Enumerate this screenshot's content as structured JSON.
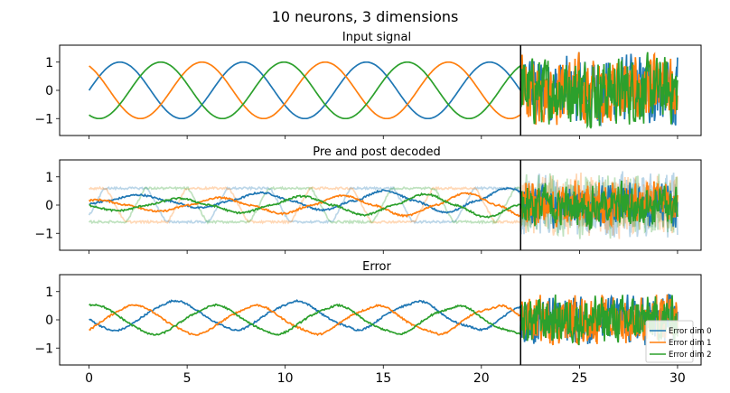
{
  "title": "10 neurons, 3 dimensions",
  "colors": {
    "dim0": "#1f77b4",
    "dim1": "#ff7f0e",
    "dim2": "#2ca02c"
  },
  "chart_data": [
    {
      "type": "line",
      "title": "Input signal",
      "xlim": [
        -1.5,
        31.2
      ],
      "ylim": [
        -1.6,
        1.6
      ],
      "yticks": [
        "1",
        "0",
        "−1"
      ],
      "ytick_values": [
        1,
        0,
        -1
      ],
      "vline_x": 22,
      "series": [
        {
          "color": "#1f77b4",
          "segment1": "sin(t)",
          "segment2": "noise"
        },
        {
          "color": "#ff7f0e",
          "segment1": "sin(t + 2.1)",
          "segment2": "noise"
        },
        {
          "color": "#2ca02c",
          "segment1": "sin(t + 4.2)",
          "segment2": "noise"
        }
      ]
    },
    {
      "type": "line",
      "title": "Pre and post decoded",
      "xlim": [
        -1.5,
        31.2
      ],
      "ylim": [
        -1.6,
        1.6
      ],
      "yticks": [
        "1",
        "0",
        "−1"
      ],
      "ytick_values": [
        1,
        0,
        -1
      ],
      "vline_x": 22,
      "series": [
        {
          "color": "#1f77b4",
          "role": "post decoded"
        },
        {
          "color": "#ff7f0e",
          "role": "post decoded"
        },
        {
          "color": "#2ca02c",
          "role": "post decoded"
        },
        {
          "color": "#1f77b4",
          "role": "pre decoded (faded)"
        },
        {
          "color": "#ff7f0e",
          "role": "pre decoded (faded)"
        },
        {
          "color": "#2ca02c",
          "role": "pre decoded (faded)"
        }
      ]
    },
    {
      "type": "line",
      "title": "Error",
      "xlim": [
        -1.5,
        31.2
      ],
      "ylim": [
        -1.6,
        1.6
      ],
      "yticks": [
        "1",
        "0",
        "−1"
      ],
      "ytick_values": [
        1,
        0,
        -1
      ],
      "xticks": [
        "0",
        "5",
        "10",
        "15",
        "20",
        "25",
        "30"
      ],
      "xtick_values": [
        0,
        5,
        10,
        15,
        20,
        25,
        30
      ],
      "vline_x": 22,
      "legend_position": "lower-right",
      "series": [
        {
          "name": "Error dim 0",
          "color": "#1f77b4"
        },
        {
          "name": "Error dim 1",
          "color": "#ff7f0e"
        },
        {
          "name": "Error dim 2",
          "color": "#2ca02c"
        }
      ]
    }
  ]
}
